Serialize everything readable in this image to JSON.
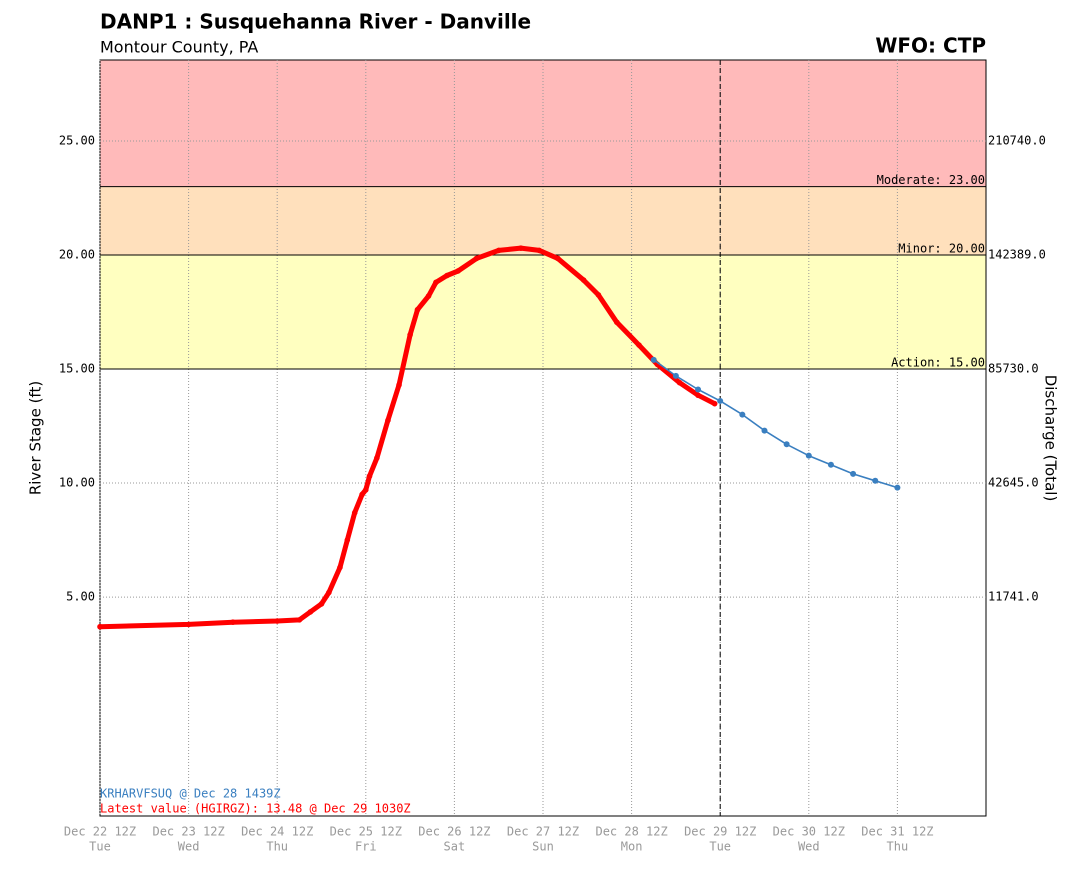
{
  "chart_data": {
    "type": "hydrograph",
    "title": "DANP1 : Susquehanna River - Danville",
    "subtitle": "Montour County, PA",
    "office": "WFO: CTP",
    "y_label": "River Stage (ft)",
    "y2_label": "Discharge (Total)",
    "xlim": [
      "Dec 22 12Z",
      "Jan 01 12Z"
    ],
    "xticks": [
      "Dec 22 12Z",
      "Dec 23 12Z",
      "Dec 24 12Z",
      "Dec 25 12Z",
      "Dec 26 12Z",
      "Dec 27 12Z",
      "Dec 28 12Z",
      "Dec 29 12Z",
      "Dec 30 12Z",
      "Dec 31 12Z"
    ],
    "xtick_days": [
      "Tue",
      "Wed",
      "Thu",
      "Fri",
      "Sat",
      "Sun",
      "Mon",
      "Tue",
      "Wed",
      "Thu"
    ],
    "ylim": [
      -4.6,
      28.55
    ],
    "yticks": [
      {
        "value": 5,
        "label": "5.00"
      },
      {
        "value": 10,
        "label": "10.00"
      },
      {
        "value": 15,
        "label": "15.00"
      },
      {
        "value": 20,
        "label": "20.00"
      },
      {
        "value": 25,
        "label": "25.00"
      }
    ],
    "y2ticks": [
      {
        "value": 11741,
        "label": "11741.0",
        "stage": 5
      },
      {
        "value": 42645,
        "label": "42645.0",
        "stage": 10
      },
      {
        "value": 85730,
        "label": "85730.0",
        "stage": 15
      },
      {
        "value": 142389,
        "label": "142389.0",
        "stage": 20
      },
      {
        "value": 210740,
        "label": "210740.0",
        "stage": 25
      }
    ],
    "grid": true,
    "thresholds": [
      {
        "label": "Action: 15.00",
        "value": 15,
        "color": "#ffffc0"
      },
      {
        "label": "Minor: 20.00",
        "value": 20,
        "color": "#ffe0bc"
      },
      {
        "label": "Moderate: 23.00",
        "value": 23,
        "color": "#ffbaba"
      }
    ],
    "current_time": "Dec 29 12Z",
    "series": [
      {
        "name": "Observed",
        "color": "#ff0000",
        "x": [
          "Dec 22 12Z",
          "Dec 23 12Z",
          "Dec 24 00Z",
          "Dec 24 12Z",
          "Dec 24 18Z",
          "Dec 24 21Z",
          "Dec 25 00Z",
          "Dec 25 02Z",
          "Dec 25 05Z",
          "Dec 25 07Z",
          "Dec 25 09Z",
          "Dec 25 11Z",
          "Dec 25 12Z",
          "Dec 25 13Z",
          "Dec 25 15Z",
          "Dec 25 18Z",
          "Dec 25 21Z",
          "Dec 26 00Z",
          "Dec 26 02Z",
          "Dec 26 05Z",
          "Dec 26 07Z",
          "Dec 26 10Z",
          "Dec 26 13Z",
          "Dec 26 18Z",
          "Dec 27 00Z",
          "Dec 27 06Z",
          "Dec 27 11Z",
          "Dec 27 16Z",
          "Dec 27 23Z",
          "Dec 28 03Z",
          "Dec 28 08Z",
          "Dec 28 14Z",
          "Dec 28 19Z",
          "Dec 29 01Z",
          "Dec 29 06Z",
          "Dec 29 1030Z"
        ],
        "values": [
          3.7,
          3.8,
          3.9,
          3.95,
          4.0,
          4.35,
          4.7,
          5.2,
          6.3,
          7.5,
          8.7,
          9.5,
          9.7,
          10.3,
          11.1,
          12.75,
          14.3,
          16.5,
          17.6,
          18.2,
          18.8,
          19.1,
          19.3,
          19.85,
          20.2,
          20.3,
          20.2,
          19.85,
          18.9,
          18.25,
          17.05,
          16.05,
          15.2,
          14.4,
          13.85,
          13.48
        ]
      },
      {
        "name": "Forecast",
        "color": "#3a7fc0",
        "x": [
          "Dec 28 18Z",
          "Dec 29 00Z",
          "Dec 29 06Z",
          "Dec 29 12Z",
          "Dec 29 18Z",
          "Dec 30 00Z",
          "Dec 30 06Z",
          "Dec 30 12Z",
          "Dec 30 18Z",
          "Dec 31 00Z",
          "Dec 31 06Z",
          "Dec 31 12Z"
        ],
        "values": [
          15.4,
          14.7,
          14.1,
          13.6,
          13.0,
          12.3,
          11.7,
          11.2,
          10.8,
          10.4,
          10.1,
          9.8
        ]
      }
    ],
    "annotations": [
      {
        "text": "KRHARVFSUQ @ Dec 28 1439Z",
        "color": "#3a7fc0"
      },
      {
        "text": "Latest value (HGIRGZ): 13.48 @ Dec 29 1030Z",
        "color": "#ff0000"
      }
    ]
  }
}
